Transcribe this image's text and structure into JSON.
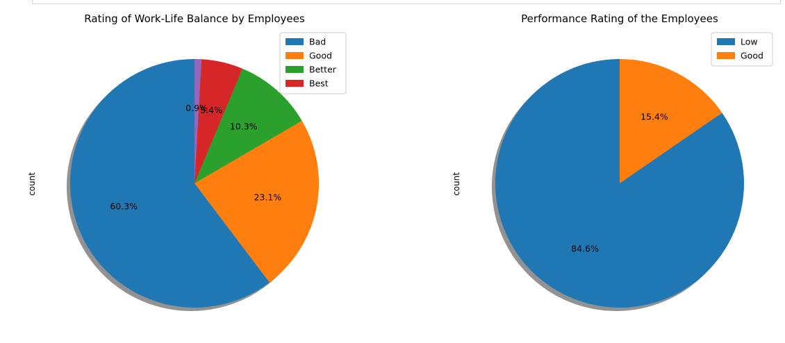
{
  "chart_data": [
    {
      "type": "pie",
      "title": "Rating of Work-Life Balance by Employees",
      "ylabel": "count",
      "legend": [
        "Bad",
        "Good",
        "Better",
        "Best"
      ],
      "legend_position": "top-right",
      "shadow": true,
      "start_angle_deg": 90,
      "slices": [
        {
          "label": "Bad",
          "value": 60.3,
          "pct_label": "60.3%",
          "color": "#1f77b4"
        },
        {
          "label": "Good",
          "value": 23.1,
          "pct_label": "23.1%",
          "color": "#ff7f0e"
        },
        {
          "label": "Better",
          "value": 10.3,
          "pct_label": "10.3%",
          "color": "#2ca02c"
        },
        {
          "label": "Best",
          "value": 5.4,
          "pct_label": "5.4%",
          "color": "#d62728"
        },
        {
          "label": "",
          "value": 0.9,
          "pct_label": "0.9%",
          "color": "#9467bd"
        }
      ]
    },
    {
      "type": "pie",
      "title": "Performance Rating of the Employees",
      "ylabel": "count",
      "legend": [
        "Low",
        "Good"
      ],
      "legend_position": "top-right",
      "shadow": true,
      "start_angle_deg": 90,
      "slices": [
        {
          "label": "Low",
          "value": 84.6,
          "pct_label": "84.6%",
          "color": "#1f77b4"
        },
        {
          "label": "Good",
          "value": 15.4,
          "pct_label": "15.4%",
          "color": "#ff7f0e"
        }
      ]
    }
  ]
}
